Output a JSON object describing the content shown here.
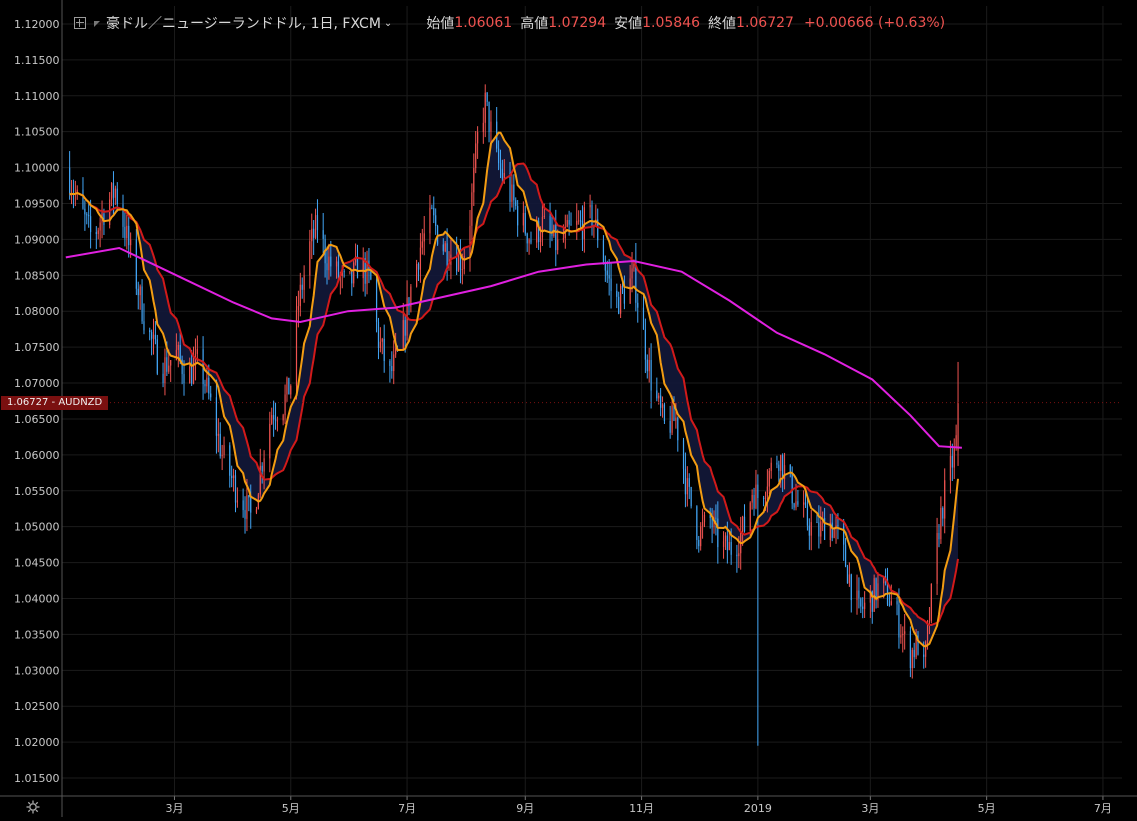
{
  "legend": {
    "symbol": "豪ドル／ニュージーランドドル, 1日, FXCM",
    "open_label": "始値",
    "open": "1.06061",
    "high_label": "高値",
    "high": "1.07294",
    "low_label": "安値",
    "low": "1.05846",
    "close_label": "終値",
    "close": "1.06727",
    "change": "+0.00666 (+0.63%)"
  },
  "price_tag": {
    "value": "1.06727",
    "ticker": "AUDNZD"
  },
  "colors": {
    "background": "#000000",
    "grid": "#1b1b1b",
    "up": "#ef5350",
    "down": "#42a5f5",
    "ma_fast": "#f39c12",
    "ma_slow": "#d11a1a",
    "ma_long": "#e020e0",
    "cloud": "#13183a"
  },
  "chart_data": {
    "type": "candlestick",
    "ylim": [
      1.0125,
      1.1225
    ],
    "y_ticks": [
      "1.12000",
      "1.11500",
      "1.11000",
      "1.10500",
      "1.10000",
      "1.09500",
      "1.09000",
      "1.08500",
      "1.08000",
      "1.07500",
      "1.07000",
      "1.06500",
      "1.06000",
      "1.05500",
      "1.05000",
      "1.04500",
      "1.04000",
      "1.03500",
      "1.03000",
      "1.02500",
      "1.02000",
      "1.01500"
    ],
    "x_ticks": [
      {
        "label": "3月",
        "day": 59
      },
      {
        "label": "5月",
        "day": 120
      },
      {
        "label": "7月",
        "day": 181
      },
      {
        "label": "9月",
        "day": 243
      },
      {
        "label": "11月",
        "day": 304
      },
      {
        "label": "2019",
        "day": 365
      },
      {
        "label": "3月",
        "day": 424
      },
      {
        "label": "5月",
        "day": 485
      },
      {
        "label": "7月",
        "day": 546
      }
    ],
    "x_range_days": [
      0,
      556
    ],
    "last_day": 472,
    "price_path": [
      [
        2,
        1.1
      ],
      [
        10,
        1.094
      ],
      [
        16,
        1.09
      ],
      [
        22,
        1.094
      ],
      [
        28,
        1.097
      ],
      [
        36,
        1.088
      ],
      [
        44,
        1.078
      ],
      [
        52,
        1.072
      ],
      [
        60,
        1.074
      ],
      [
        66,
        1.071
      ],
      [
        72,
        1.073
      ],
      [
        78,
        1.067
      ],
      [
        84,
        1.06
      ],
      [
        90,
        1.056
      ],
      [
        96,
        1.053
      ],
      [
        100,
        1.051
      ],
      [
        104,
        1.058
      ],
      [
        110,
        1.066
      ],
      [
        116,
        1.067
      ],
      [
        120,
        1.07
      ],
      [
        124,
        1.081
      ],
      [
        130,
        1.089
      ],
      [
        134,
        1.092
      ],
      [
        138,
        1.088
      ],
      [
        142,
        1.086
      ],
      [
        150,
        1.083
      ],
      [
        156,
        1.087
      ],
      [
        162,
        1.084
      ],
      [
        166,
        1.076
      ],
      [
        172,
        1.071
      ],
      [
        178,
        1.075
      ],
      [
        182,
        1.082
      ],
      [
        188,
        1.089
      ],
      [
        194,
        1.093
      ],
      [
        200,
        1.089
      ],
      [
        206,
        1.088
      ],
      [
        210,
        1.087
      ],
      [
        214,
        1.093
      ],
      [
        218,
        1.104
      ],
      [
        222,
        1.109
      ],
      [
        228,
        1.101
      ],
      [
        234,
        1.097
      ],
      [
        240,
        1.093
      ],
      [
        246,
        1.09
      ],
      [
        252,
        1.092
      ],
      [
        260,
        1.089
      ],
      [
        266,
        1.091
      ],
      [
        272,
        1.092
      ],
      [
        278,
        1.093
      ],
      [
        282,
        1.09
      ],
      [
        286,
        1.085
      ],
      [
        290,
        1.081
      ],
      [
        296,
        1.083
      ],
      [
        300,
        1.085
      ],
      [
        304,
        1.078
      ],
      [
        310,
        1.069
      ],
      [
        316,
        1.064
      ],
      [
        322,
        1.065
      ],
      [
        328,
        1.055
      ],
      [
        334,
        1.049
      ],
      [
        340,
        1.051
      ],
      [
        346,
        1.047
      ],
      [
        352,
        1.047
      ],
      [
        358,
        1.05
      ],
      [
        362,
        1.055
      ],
      [
        366,
        1.054
      ],
      [
        370,
        1.057
      ],
      [
        376,
        1.06
      ],
      [
        380,
        1.057
      ],
      [
        384,
        1.054
      ],
      [
        390,
        1.051
      ],
      [
        396,
        1.049
      ],
      [
        402,
        1.051
      ],
      [
        408,
        1.048
      ],
      [
        414,
        1.042
      ],
      [
        418,
        1.038
      ],
      [
        424,
        1.04
      ],
      [
        430,
        1.042
      ],
      [
        434,
        1.04
      ],
      [
        440,
        1.036
      ],
      [
        444,
        1.032
      ],
      [
        450,
        1.034
      ],
      [
        452,
        1.03
      ],
      [
        456,
        1.04
      ],
      [
        460,
        1.05
      ],
      [
        464,
        1.056
      ],
      [
        468,
        1.06
      ],
      [
        472,
        1.0673
      ]
    ],
    "anomaly": {
      "day": 365,
      "low": 1.0195
    },
    "ma_long": [
      [
        2,
        1.0875
      ],
      [
        30,
        1.0888
      ],
      [
        60,
        1.085
      ],
      [
        90,
        1.0812
      ],
      [
        110,
        1.079
      ],
      [
        125,
        1.0785
      ],
      [
        150,
        1.08
      ],
      [
        175,
        1.0805
      ],
      [
        200,
        1.082
      ],
      [
        225,
        1.0835
      ],
      [
        250,
        1.0855
      ],
      [
        275,
        1.0865
      ],
      [
        300,
        1.087
      ],
      [
        325,
        1.0855
      ],
      [
        350,
        1.0815
      ],
      [
        375,
        1.077
      ],
      [
        400,
        1.074
      ],
      [
        425,
        1.0705
      ],
      [
        445,
        1.0655
      ],
      [
        460,
        1.0612
      ],
      [
        472,
        1.061
      ]
    ]
  }
}
